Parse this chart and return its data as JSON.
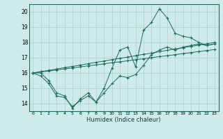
{
  "xlabel": "Humidex (Indice chaleur)",
  "bg_color": "#ceeaea",
  "grid_color": "#aacfcf",
  "line_color": "#1a6b5a",
  "x_values": [
    0,
    1,
    2,
    3,
    4,
    5,
    6,
    7,
    8,
    9,
    10,
    11,
    12,
    13,
    14,
    15,
    16,
    17,
    18,
    19,
    20,
    21,
    22,
    23
  ],
  "line_max": [
    16.0,
    16.0,
    15.5,
    14.7,
    14.5,
    13.7,
    14.3,
    14.7,
    14.1,
    15.0,
    16.3,
    17.5,
    17.7,
    16.4,
    18.8,
    19.3,
    20.2,
    19.6,
    18.6,
    18.4,
    18.3,
    18.0,
    17.8,
    17.9
  ],
  "line_reg1": [
    16.0,
    16.07,
    16.13,
    16.2,
    16.27,
    16.33,
    16.4,
    16.47,
    16.53,
    16.6,
    16.67,
    16.73,
    16.8,
    16.87,
    16.93,
    17.0,
    17.07,
    17.13,
    17.2,
    17.27,
    17.33,
    17.4,
    17.47,
    17.53
  ],
  "line_reg2": [
    16.0,
    16.09,
    16.17,
    16.26,
    16.35,
    16.43,
    16.52,
    16.61,
    16.7,
    16.78,
    16.87,
    16.96,
    17.04,
    17.13,
    17.22,
    17.3,
    17.39,
    17.48,
    17.57,
    17.65,
    17.74,
    17.83,
    17.91,
    18.0
  ],
  "line_min": [
    16.0,
    15.8,
    15.3,
    14.5,
    14.4,
    13.8,
    14.2,
    14.5,
    14.1,
    14.7,
    15.3,
    15.8,
    15.7,
    15.9,
    16.5,
    17.2,
    17.5,
    17.7,
    17.5,
    17.7,
    17.8,
    17.9,
    17.8,
    17.9
  ],
  "xlim": [
    -0.5,
    23.5
  ],
  "ylim": [
    13.5,
    20.5
  ],
  "yticks": [
    14,
    15,
    16,
    17,
    18,
    19,
    20
  ],
  "xticks": [
    0,
    1,
    2,
    3,
    4,
    5,
    6,
    7,
    8,
    9,
    10,
    11,
    12,
    13,
    14,
    15,
    16,
    17,
    18,
    19,
    20,
    21,
    22,
    23
  ]
}
